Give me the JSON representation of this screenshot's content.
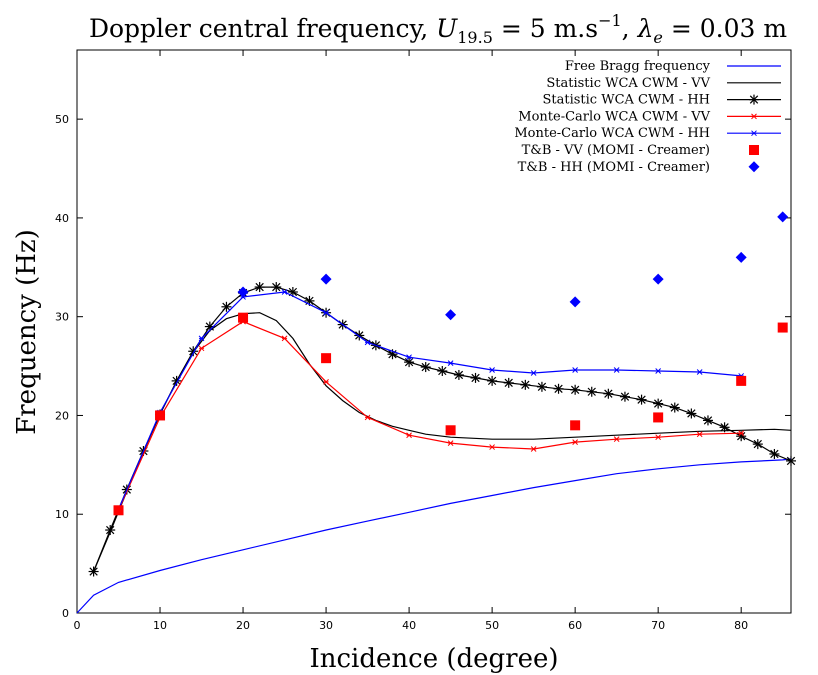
{
  "chart_data": {
    "type": "line",
    "title": "Doppler central frequency, U_{19.5} = 5 m.s^{-1}, λ_e = 0.03 m",
    "title_parts": {
      "prefix": "Doppler central frequency, ",
      "u_symbol": "U",
      "u_sub": "19.5",
      "u_value": " = 5 m.s",
      "u_exp": "−1",
      "sep": ", ",
      "lambda_symbol": "λ",
      "lambda_sub": "e",
      "lambda_value": " = 0.03 m"
    },
    "xlabel": "Incidence (degree)",
    "ylabel": "Frequency (Hz)",
    "xlim": [
      0,
      86
    ],
    "ylim": [
      0,
      57
    ],
    "xticks": [
      0,
      10,
      20,
      30,
      40,
      50,
      60,
      70,
      80
    ],
    "yticks": [
      0,
      10,
      20,
      30,
      40,
      50
    ],
    "grid": false,
    "legend_position": "top-right",
    "series": [
      {
        "name": "Free Bragg frequency",
        "color": "#0000ff",
        "style": "line",
        "x": [
          0,
          2,
          5,
          10,
          15,
          20,
          25,
          30,
          35,
          40,
          45,
          50,
          55,
          60,
          65,
          70,
          75,
          80,
          85,
          86
        ],
        "y": [
          0,
          1.8,
          3.1,
          4.3,
          5.4,
          6.4,
          7.4,
          8.4,
          9.3,
          10.2,
          11.1,
          11.9,
          12.7,
          13.4,
          14.1,
          14.6,
          15.0,
          15.3,
          15.5,
          15.6
        ]
      },
      {
        "name": "Statistic WCA CWM - VV",
        "color": "#000000",
        "style": "line",
        "x": [
          2,
          4,
          6,
          8,
          10,
          12,
          14,
          16,
          18,
          20,
          22,
          24,
          26,
          28,
          30,
          32,
          34,
          36,
          38,
          40,
          42,
          45,
          50,
          55,
          60,
          65,
          70,
          75,
          80,
          84,
          86
        ],
        "y": [
          4.2,
          8.2,
          12.3,
          16.3,
          20.2,
          23.4,
          26.4,
          28.6,
          29.8,
          30.3,
          30.4,
          29.6,
          27.8,
          25.2,
          23.0,
          21.5,
          20.3,
          19.5,
          18.9,
          18.5,
          18.1,
          17.8,
          17.6,
          17.6,
          17.8,
          18.0,
          18.2,
          18.4,
          18.5,
          18.6,
          18.5
        ]
      },
      {
        "name": "Statistic WCA CWM - HH",
        "color": "#000000",
        "style": "line-asterisk",
        "x": [
          2,
          4,
          6,
          8,
          10,
          12,
          14,
          16,
          18,
          20,
          22,
          24,
          26,
          28,
          30,
          32,
          34,
          36,
          38,
          40,
          42,
          44,
          46,
          48,
          50,
          52,
          54,
          56,
          58,
          60,
          62,
          64,
          66,
          68,
          70,
          72,
          74,
          76,
          78,
          80,
          82,
          84,
          86
        ],
        "y": [
          4.2,
          8.4,
          12.5,
          16.4,
          20.1,
          23.5,
          26.5,
          29.0,
          31.0,
          32.4,
          33.0,
          33.0,
          32.5,
          31.6,
          30.4,
          29.2,
          28.1,
          27.1,
          26.2,
          25.4,
          24.9,
          24.5,
          24.1,
          23.8,
          23.5,
          23.3,
          23.1,
          22.9,
          22.7,
          22.6,
          22.4,
          22.2,
          21.9,
          21.6,
          21.2,
          20.8,
          20.2,
          19.5,
          18.8,
          17.9,
          17.1,
          16.1,
          15.4
        ]
      },
      {
        "name": "Monte-Carlo WCA CWM - VV",
        "color": "#ff0000",
        "style": "line-x",
        "x": [
          5,
          10,
          15,
          20,
          25,
          30,
          35,
          40,
          45,
          50,
          55,
          60,
          65,
          70,
          75,
          80
        ],
        "y": [
          10.4,
          19.8,
          26.8,
          29.5,
          27.8,
          23.4,
          19.8,
          18.0,
          17.2,
          16.8,
          16.6,
          17.3,
          17.6,
          17.8,
          18.1,
          18.2
        ]
      },
      {
        "name": "Monte-Carlo WCA CWM - HH",
        "color": "#0000ff",
        "style": "line-x",
        "x": [
          5,
          10,
          15,
          20,
          25,
          30,
          35,
          40,
          45,
          50,
          55,
          60,
          65,
          70,
          75,
          80
        ],
        "y": [
          10.5,
          20.3,
          27.8,
          32.0,
          32.5,
          30.4,
          27.4,
          25.9,
          25.3,
          24.6,
          24.3,
          24.6,
          24.6,
          24.5,
          24.4,
          24.0
        ]
      },
      {
        "name": "T&B - VV (MOMI - Creamer)",
        "color": "#ff0000",
        "style": "square",
        "x": [
          5,
          10,
          20,
          30,
          45,
          60,
          70,
          80,
          85
        ],
        "y": [
          10.4,
          20.0,
          29.9,
          25.8,
          18.5,
          19.0,
          19.8,
          23.5,
          28.9
        ]
      },
      {
        "name": "T&B - HH (MOMI - Creamer)",
        "color": "#0000ff",
        "style": "diamond",
        "x": [
          20,
          30,
          45,
          60,
          70,
          80,
          85
        ],
        "y": [
          32.5,
          33.8,
          30.2,
          31.5,
          33.8,
          36.0,
          40.1
        ]
      }
    ]
  }
}
